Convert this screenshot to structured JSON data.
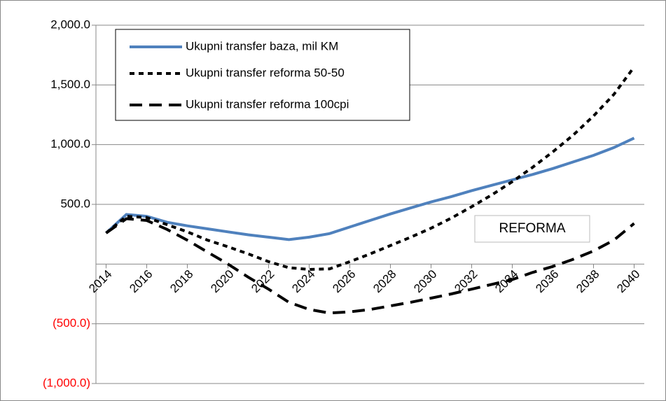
{
  "chart_data": {
    "type": "line",
    "x": [
      2014,
      2015,
      2016,
      2017,
      2018,
      2019,
      2020,
      2021,
      2022,
      2023,
      2024,
      2025,
      2026,
      2027,
      2028,
      2029,
      2030,
      2031,
      2032,
      2033,
      2034,
      2035,
      2036,
      2037,
      2038,
      2039,
      2040
    ],
    "series": [
      {
        "name": "Ukupni transfer baza, mil KM",
        "color": "#4f81bd",
        "dash": "solid",
        "values": [
          260,
          415,
          400,
          350,
          320,
          295,
          270,
          245,
          225,
          205,
          225,
          255,
          310,
          365,
          420,
          470,
          520,
          565,
          615,
          660,
          705,
          750,
          800,
          855,
          910,
          975,
          1055
        ]
      },
      {
        "name": "Ukupni transfer reforma 50-50",
        "color": "#000000",
        "dash": "short",
        "values": [
          260,
          400,
          390,
          330,
          270,
          200,
          145,
          85,
          20,
          -30,
          -45,
          -40,
          20,
          85,
          155,
          225,
          300,
          385,
          480,
          580,
          690,
          810,
          940,
          1080,
          1240,
          1420,
          1650
        ]
      },
      {
        "name": "Ukupni transfer reforma 100cpi",
        "color": "#000000",
        "dash": "long",
        "values": [
          260,
          380,
          365,
          290,
          200,
          100,
          0,
          -110,
          -210,
          -320,
          -380,
          -410,
          -400,
          -380,
          -350,
          -320,
          -285,
          -250,
          -210,
          -170,
          -130,
          -70,
          -20,
          40,
          110,
          200,
          340
        ]
      }
    ],
    "xlim": [
      2013.5,
      2040.5
    ],
    "xticks": [
      2014,
      2016,
      2018,
      2020,
      2022,
      2024,
      2026,
      2028,
      2030,
      2032,
      2034,
      2036,
      2038,
      2040
    ],
    "ylim": [
      -1000,
      2000
    ],
    "yticks": [
      {
        "value": 2000,
        "label": "2,000.0"
      },
      {
        "value": 1500,
        "label": "1,500.0"
      },
      {
        "value": 1000,
        "label": "1,000.0"
      },
      {
        "value": 500,
        "label": "500.0"
      },
      {
        "value": -500,
        "label": "(500.0)"
      },
      {
        "value": -1000,
        "label": "(1,000.0)"
      }
    ],
    "negative_label_color": "#ff0000",
    "grid": true,
    "legend": "upper left",
    "annotations": [
      "REFORMA"
    ]
  }
}
